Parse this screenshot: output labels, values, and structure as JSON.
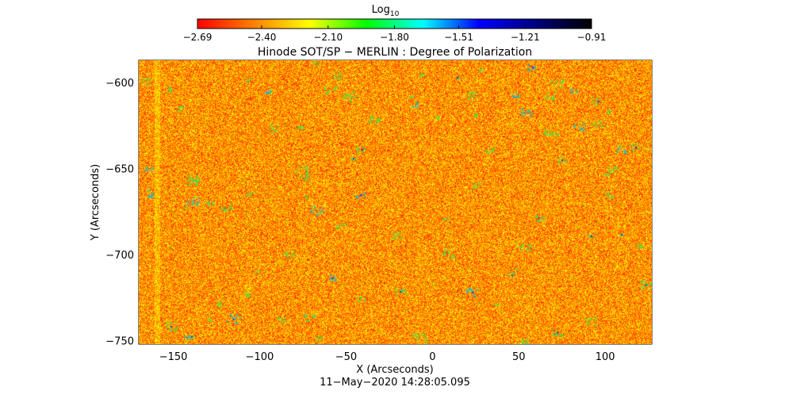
{
  "chart_data": {
    "type": "heatmap",
    "title": "Hinode SOT/SP − MERLIN : Degree of Polarization",
    "xlabel": "X (Arcseconds)",
    "ylabel": "Y (Arcseconds)",
    "xlim": [
      -170,
      127
    ],
    "ylim": [
      -752,
      -587
    ],
    "x_ticks": [
      -150,
      -100,
      -50,
      0,
      50,
      100
    ],
    "x_tick_labels": [
      "−150",
      "−100",
      "−50",
      "0",
      "50",
      "100"
    ],
    "y_ticks": [
      -600,
      -650,
      -700,
      -750
    ],
    "y_tick_labels": [
      "−600",
      "−650",
      "−700",
      "−750"
    ],
    "colorbar": {
      "label": "Log",
      "label_sub": "10",
      "range": [
        -2.69,
        -0.91
      ],
      "tick_values": [
        -2.69,
        -2.4,
        -2.1,
        -1.8,
        -1.51,
        -1.21,
        -0.91
      ],
      "tick_labels": [
        "−2.69",
        "−2.40",
        "−2.10",
        "−1.80",
        "−1.51",
        "−1.21",
        "−0.91"
      ],
      "colormap": [
        "#ff0000",
        "#ff8000",
        "#ffff00",
        "#00ff00",
        "#00ffff",
        "#0000ff",
        "#000080",
        "#000000"
      ]
    },
    "timestamp": "11−May−2020 14:28:05.095"
  }
}
